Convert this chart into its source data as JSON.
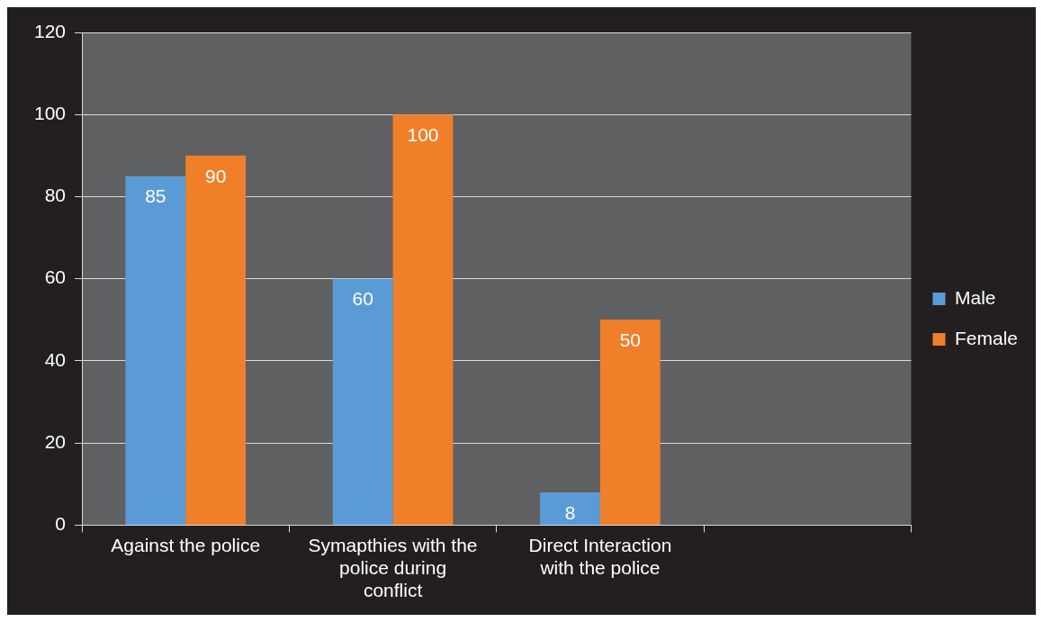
{
  "chart_data": {
    "type": "bar",
    "categories": [
      "Against the police",
      "Symapthies with the police during conflict",
      "Direct Interaction with the police",
      null
    ],
    "series": [
      {
        "name": "Male",
        "color": "#5b9bd5",
        "values": [
          85,
          60,
          8,
          null
        ]
      },
      {
        "name": "Female",
        "color": "#f07f2a",
        "values": [
          90,
          100,
          50,
          null
        ]
      }
    ],
    "ylim": [
      0,
      120
    ],
    "yticks": [
      0,
      20,
      40,
      60,
      80,
      100,
      120
    ],
    "grid": "y",
    "legend": "right",
    "data_labels": true
  }
}
